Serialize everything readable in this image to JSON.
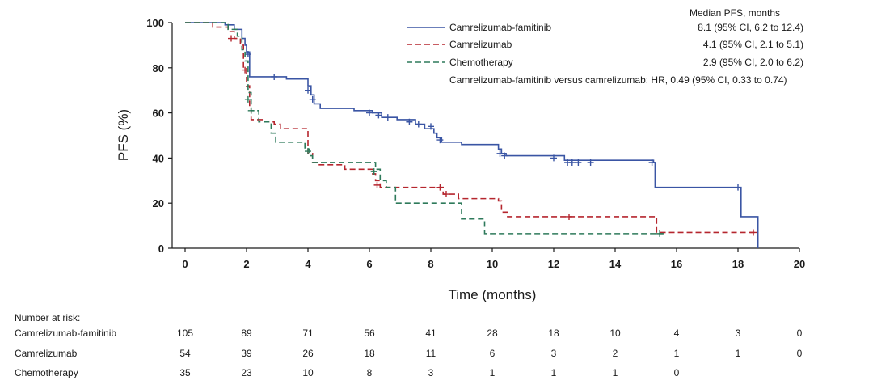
{
  "chart_data": {
    "type": "line",
    "subtype": "kaplan-meier step",
    "xlabel": "Time (months)",
    "ylabel": "PFS (%)",
    "xlim": [
      0,
      20
    ],
    "ylim": [
      0,
      100
    ],
    "xticks": [
      "0",
      "2",
      "4",
      "6",
      "8",
      "10",
      "12",
      "14",
      "16",
      "18",
      "20"
    ],
    "yticks": [
      "0",
      "20",
      "40",
      "60",
      "80",
      "100"
    ],
    "series": [
      {
        "name": "Camrelizumab-famitinib",
        "color": "#3a55a4",
        "dash": "solid",
        "steps": [
          [
            0,
            100
          ],
          [
            1.3,
            99
          ],
          [
            1.6,
            97
          ],
          [
            1.85,
            93
          ],
          [
            1.95,
            90
          ],
          [
            2.0,
            87
          ],
          [
            2.1,
            76
          ],
          [
            3.3,
            75
          ],
          [
            4.0,
            72
          ],
          [
            4.1,
            68
          ],
          [
            4.2,
            64
          ],
          [
            4.4,
            62
          ],
          [
            5.5,
            61
          ],
          [
            6.1,
            60
          ],
          [
            6.4,
            58
          ],
          [
            6.9,
            57
          ],
          [
            7.5,
            55
          ],
          [
            7.8,
            53
          ],
          [
            8.1,
            51
          ],
          [
            8.2,
            49
          ],
          [
            8.35,
            47
          ],
          [
            9.0,
            46
          ],
          [
            10.2,
            44
          ],
          [
            10.3,
            42
          ],
          [
            10.45,
            41
          ],
          [
            12.35,
            39
          ],
          [
            15.25,
            38
          ],
          [
            15.3,
            27
          ],
          [
            18.05,
            27
          ],
          [
            18.1,
            14
          ],
          [
            18.6,
            14
          ],
          [
            18.65,
            0
          ]
        ],
        "censors": [
          [
            2.05,
            86
          ],
          [
            2.9,
            76
          ],
          [
            4.0,
            70
          ],
          [
            4.15,
            66
          ],
          [
            6.0,
            60
          ],
          [
            6.3,
            59
          ],
          [
            6.6,
            58
          ],
          [
            7.3,
            56
          ],
          [
            7.6,
            55
          ],
          [
            8.0,
            54
          ],
          [
            8.3,
            48
          ],
          [
            10.25,
            42
          ],
          [
            10.4,
            41
          ],
          [
            12.0,
            40
          ],
          [
            12.45,
            38
          ],
          [
            12.6,
            38
          ],
          [
            12.8,
            38
          ],
          [
            13.2,
            38
          ],
          [
            15.2,
            38
          ],
          [
            18.0,
            27
          ]
        ],
        "median_text": "8.1 (95% CI, 6.2 to 12.4)"
      },
      {
        "name": "Camrelizumab",
        "color": "#b5262e",
        "dash": "dashed",
        "steps": [
          [
            0,
            100
          ],
          [
            0.9,
            98
          ],
          [
            1.4,
            96
          ],
          [
            1.6,
            93
          ],
          [
            1.8,
            90
          ],
          [
            1.9,
            80
          ],
          [
            2.0,
            72
          ],
          [
            2.1,
            63
          ],
          [
            2.15,
            57
          ],
          [
            2.55,
            56
          ],
          [
            2.9,
            55
          ],
          [
            3.1,
            53
          ],
          [
            4.0,
            42
          ],
          [
            4.15,
            38
          ],
          [
            4.3,
            37
          ],
          [
            5.2,
            35
          ],
          [
            6.1,
            33
          ],
          [
            6.2,
            30
          ],
          [
            6.35,
            27
          ],
          [
            8.4,
            24
          ],
          [
            8.9,
            22
          ],
          [
            10.2,
            21
          ],
          [
            10.3,
            16
          ],
          [
            10.5,
            14
          ],
          [
            15.25,
            14
          ],
          [
            15.35,
            7
          ],
          [
            18.6,
            7
          ]
        ],
        "censors": [
          [
            1.5,
            93
          ],
          [
            1.95,
            79
          ],
          [
            6.25,
            28
          ],
          [
            8.3,
            27
          ],
          [
            8.5,
            24
          ],
          [
            12.5,
            14
          ],
          [
            18.5,
            7
          ]
        ],
        "median_text": "4.1 (95% CI, 2.1 to 5.1)"
      },
      {
        "name": "Chemotherapy",
        "color": "#2e7a5b",
        "dash": "dashed",
        "steps": [
          [
            0,
            100
          ],
          [
            1.4,
            97
          ],
          [
            1.7,
            94
          ],
          [
            1.85,
            88
          ],
          [
            1.95,
            83
          ],
          [
            2.05,
            69
          ],
          [
            2.15,
            61
          ],
          [
            2.4,
            56
          ],
          [
            2.8,
            51
          ],
          [
            2.95,
            47
          ],
          [
            3.9,
            44
          ],
          [
            4.05,
            41
          ],
          [
            4.15,
            38
          ],
          [
            6.2,
            35
          ],
          [
            6.35,
            30
          ],
          [
            6.55,
            27
          ],
          [
            6.85,
            20
          ],
          [
            9.0,
            13
          ],
          [
            9.75,
            6.5
          ],
          [
            15.6,
            6.5
          ]
        ],
        "censors": [
          [
            2.05,
            66
          ],
          [
            2.15,
            61
          ],
          [
            4.0,
            43
          ],
          [
            6.15,
            34
          ],
          [
            15.45,
            6.5
          ]
        ],
        "median_text": "2.9 (95% CI, 2.0 to 6.2)"
      }
    ],
    "legend": {
      "position": "top-right",
      "header": "Median PFS, months",
      "hr_text": "Camrelizumab-famitinib versus camrelizumab: HR, 0.49 (95% CI, 0.33 to 0.74)"
    },
    "risk_table": {
      "title": "Number at risk:",
      "timepoints": [
        0,
        2,
        4,
        6,
        8,
        10,
        12,
        14,
        16,
        18,
        20
      ],
      "rows": [
        {
          "label": "Camrelizumab-famitinib",
          "values": [
            "105",
            "89",
            "71",
            "56",
            "41",
            "28",
            "18",
            "10",
            "4",
            "3",
            "0"
          ]
        },
        {
          "label": "Camrelizumab",
          "values": [
            "54",
            "39",
            "26",
            "18",
            "11",
            "6",
            "3",
            "2",
            "1",
            "1",
            "0"
          ]
        },
        {
          "label": "Chemotherapy",
          "values": [
            "35",
            "23",
            "10",
            "8",
            "3",
            "1",
            "1",
            "1",
            "0"
          ]
        }
      ]
    }
  }
}
